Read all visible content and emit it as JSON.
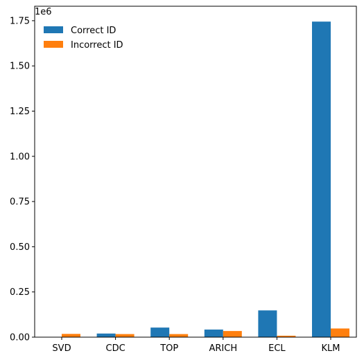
{
  "chart_data": {
    "type": "bar",
    "title": "",
    "xlabel": "",
    "ylabel": "",
    "y_offset_label": "1e6",
    "categories": [
      "SVD",
      "CDC",
      "TOP",
      "ARICH",
      "ECL",
      "KLM"
    ],
    "series": [
      {
        "name": "Correct ID",
        "color": "#1f77b4",
        "values": [
          0,
          20000,
          53000,
          42000,
          148000,
          1745000
        ]
      },
      {
        "name": "Incorrect ID",
        "color": "#ff7f0e",
        "values": [
          18000,
          17000,
          17000,
          34000,
          8000,
          48000
        ]
      }
    ],
    "ylim": [
      0,
      1830000
    ],
    "yticks": [
      0,
      250000,
      500000,
      750000,
      1000000,
      1250000,
      1500000,
      1750000
    ],
    "ytick_labels": [
      "0.00",
      "0.25",
      "0.50",
      "0.75",
      "1.00",
      "1.25",
      "1.50",
      "1.75"
    ],
    "legend_position": "top-left",
    "grid": false
  }
}
